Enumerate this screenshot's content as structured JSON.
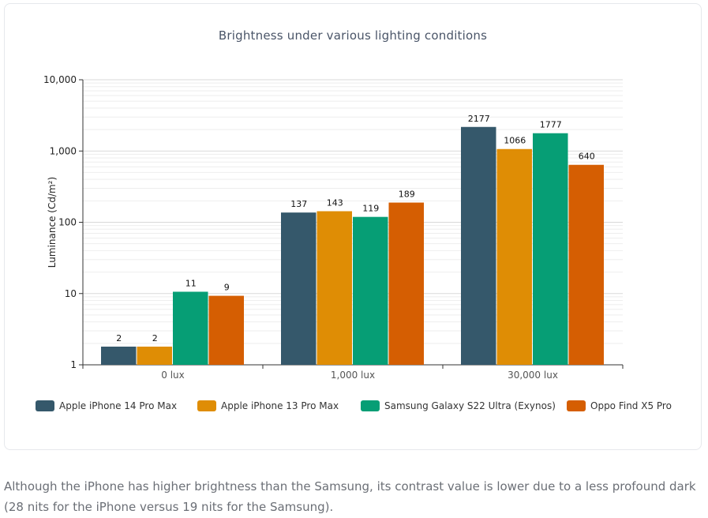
{
  "chart_data": {
    "type": "bar",
    "title": "Brightness under various lighting conditions",
    "xlabel": "",
    "ylabel": "Luminance (Cd/m²)",
    "yscale": "log",
    "ylim": [
      1,
      10000
    ],
    "yticks": [
      1,
      10,
      100,
      1000,
      10000
    ],
    "ytick_labels": [
      "1",
      "10",
      "100",
      "1,000",
      "10,000"
    ],
    "categories": [
      "0 lux",
      "1,000 lux",
      "30,000 lux"
    ],
    "series": [
      {
        "name": "Apple iPhone 14 Pro Max",
        "color": "#35586b",
        "values": [
          1.8,
          137,
          2177
        ],
        "labels": [
          "2",
          "137",
          "2177"
        ]
      },
      {
        "name": "Apple iPhone 13 Pro Max",
        "color": "#df8d05",
        "values": [
          1.8,
          143,
          1066
        ],
        "labels": [
          "2",
          "143",
          "1066"
        ]
      },
      {
        "name": "Samsung Galaxy S22 Ultra (Exynos)",
        "color": "#069e75",
        "values": [
          10.6,
          119,
          1777
        ],
        "labels": [
          "11",
          "119",
          "1777"
        ]
      },
      {
        "name": "Oppo Find X5 Pro",
        "color": "#d55e02",
        "values": [
          9.3,
          189,
          640
        ],
        "labels": [
          "9",
          "189",
          "640"
        ]
      }
    ],
    "grid": true,
    "legend_position": "bottom"
  },
  "caption": "Although the iPhone has higher brightness than the Samsung, its contrast value is lower due to a less profound dark (28 nits for the iPhone versus 19 nits for the Samsung)."
}
